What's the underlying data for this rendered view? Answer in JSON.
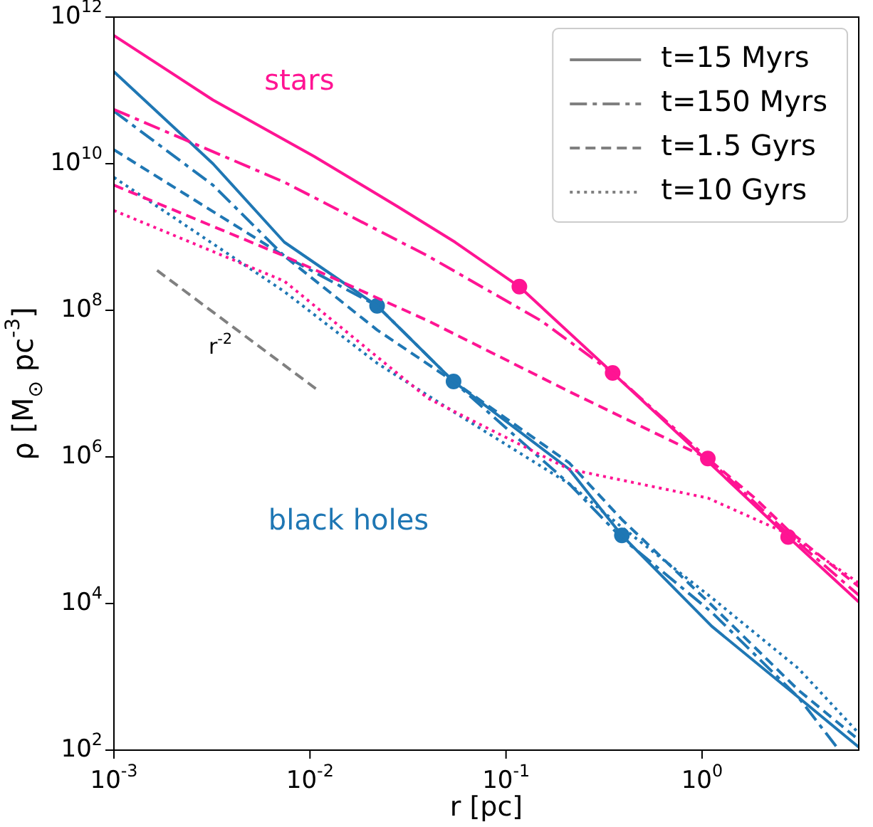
{
  "chart_data": {
    "type": "line",
    "xlabel": "r [pc]",
    "ylabel": "ρ [M$_{⊙}$ pc$^{-3}$]",
    "log": "xy",
    "grid": false,
    "legend": "top right",
    "marker": "none",
    "xlim": [
      0.001,
      6.3
    ],
    "ylim": [
      100,
      1000000000000.0
    ],
    "xticks": [
      {
        "value": 0.001,
        "label": "10$^{-3}$"
      },
      {
        "value": 0.01,
        "label": "10$^{-2}$"
      },
      {
        "value": 0.1,
        "label": "10$^{-1}$"
      },
      {
        "value": 1,
        "label": "10$^{0}$"
      }
    ],
    "yticks": [
      {
        "value": 100,
        "label": "10$^{2}$"
      },
      {
        "value": 10000,
        "label": "10$^{4}$"
      },
      {
        "value": 1000000,
        "label": "10$^{6}$"
      },
      {
        "value": 100000000,
        "label": "10$^{8}$"
      },
      {
        "value": 10000000000,
        "label": "10$^{10}$"
      },
      {
        "value": 1000000000000,
        "label": "10$^{12}$"
      }
    ],
    "series": [
      {
        "type": "line",
        "color": "#ff1493",
        "line_style": "solid",
        "x": [
          0.001,
          0.0032,
          0.0105,
          0.028,
          0.055,
          0.117,
          0.35,
          1.07,
          2.75,
          6.3
        ],
        "values": [
          560000000000.0,
          74000000000.0,
          12600000000.0,
          2600000000.0,
          850000000.0,
          210000000.0,
          14000000.0,
          870000.0,
          81000.0,
          10500.0
        ]
      },
      {
        "type": "line",
        "color": "#ff1493",
        "line_style": "dashdot",
        "x": [
          0.001,
          0.0074,
          0.04,
          0.151,
          0.35,
          1.07,
          2.75,
          6.3
        ],
        "values": [
          55000000000.0,
          5600000000.0,
          550000000.0,
          72000000.0,
          14000000.0,
          950000.0,
          89000.0,
          13000.0
        ]
      },
      {
        "type": "line",
        "color": "#ff1493",
        "line_style": "dashed",
        "x": [
          0.001,
          0.0074,
          0.04,
          0.21,
          1.07,
          1.86,
          2.75,
          6.3
        ],
        "values": [
          5100000000.0,
          550000000.0,
          72000000.0,
          7800000.0,
          950000.0,
          275000.0,
          100000.0,
          17000.0
        ]
      },
      {
        "type": "line",
        "color": "#ff1493",
        "line_style": "dotted",
        "x": [
          0.001,
          0.0074,
          0.04,
          0.21,
          1.07,
          2.75,
          6.3
        ],
        "values": [
          2300000000.0,
          250000000.0,
          6300000.0,
          680000.0,
          275000.0,
          89000.0,
          19000.0
        ]
      },
      {
        "type": "line",
        "color": "#1f77b4",
        "line_style": "solid",
        "x": [
          0.001,
          0.0032,
          0.0074,
          0.022,
          0.054,
          0.21,
          0.39,
          1.12,
          3.1,
          6.3
        ],
        "values": [
          180000000000.0,
          10000000000.0,
          850000000.0,
          115000000.0,
          10700000.0,
          680000.0,
          85000.0,
          4900.0,
          525,
          110
        ]
      },
      {
        "type": "line",
        "color": "#1f77b4",
        "line_style": "dashdot",
        "x": [
          0.001,
          0.0032,
          0.0074,
          0.022,
          0.054,
          0.21,
          0.39,
          1.12,
          3.1,
          5.0
        ],
        "values": [
          52000000000.0,
          5100000000.0,
          550000000.0,
          115000000.0,
          10700000.0,
          430000.0,
          78000.0,
          7600.0,
          525,
          100
        ]
      },
      {
        "type": "line",
        "color": "#1f77b4",
        "line_style": "dashed",
        "x": [
          0.001,
          0.0074,
          0.022,
          0.054,
          0.21,
          0.39,
          1.12,
          3.1,
          6.3
        ],
        "values": [
          15500000000.0,
          550000000.0,
          54000000.0,
          10700000.0,
          830000.0,
          140000.0,
          9500.0,
          660,
          138
        ]
      },
      {
        "type": "line",
        "color": "#1f77b4",
        "line_style": "dotted",
        "x": [
          0.001,
          0.0074,
          0.022,
          0.055,
          0.21,
          0.39,
          1.12,
          3.1,
          6.3
        ],
        "values": [
          6500000000.0,
          180000000.0,
          19000000.0,
          4000000.0,
          430000.0,
          110000.0,
          12000.0,
          1300.0,
          170
        ]
      },
      {
        "type": "scatter",
        "color": "#ff1493",
        "marker": "circle",
        "x": [
          0.117,
          0.35,
          1.07,
          2.75
        ],
        "values": [
          210000000.0,
          14000000.0,
          950000.0,
          81000.0
        ]
      },
      {
        "type": "scatter",
        "color": "#1f77b4",
        "marker": "circle",
        "x": [
          0.022,
          0.054,
          0.39
        ],
        "values": [
          115000000.0,
          10700000.0,
          85000.0
        ]
      },
      {
        "type": "line",
        "color": "#808080",
        "line_style": "dashed",
        "x": [
          0.00166,
          0.0112
        ],
        "values": [
          350000000.0,
          7800000.0
        ]
      },
      {
        "type": "line",
        "name": "t=15 Myrs",
        "color": "#808080",
        "line_style": "solid"
      },
      {
        "type": "line",
        "name": "t=150 Myrs",
        "color": "#808080",
        "line_style": "dashdot"
      },
      {
        "type": "line",
        "name": "t=1.5 Gyrs",
        "color": "#808080",
        "line_style": "dashed"
      },
      {
        "type": "line",
        "name": "t=10 Gyrs",
        "color": "#808080",
        "line_style": "dotted"
      }
    ],
    "annotations": [
      "stars",
      "black holes",
      "r$^{-2}$"
    ]
  }
}
